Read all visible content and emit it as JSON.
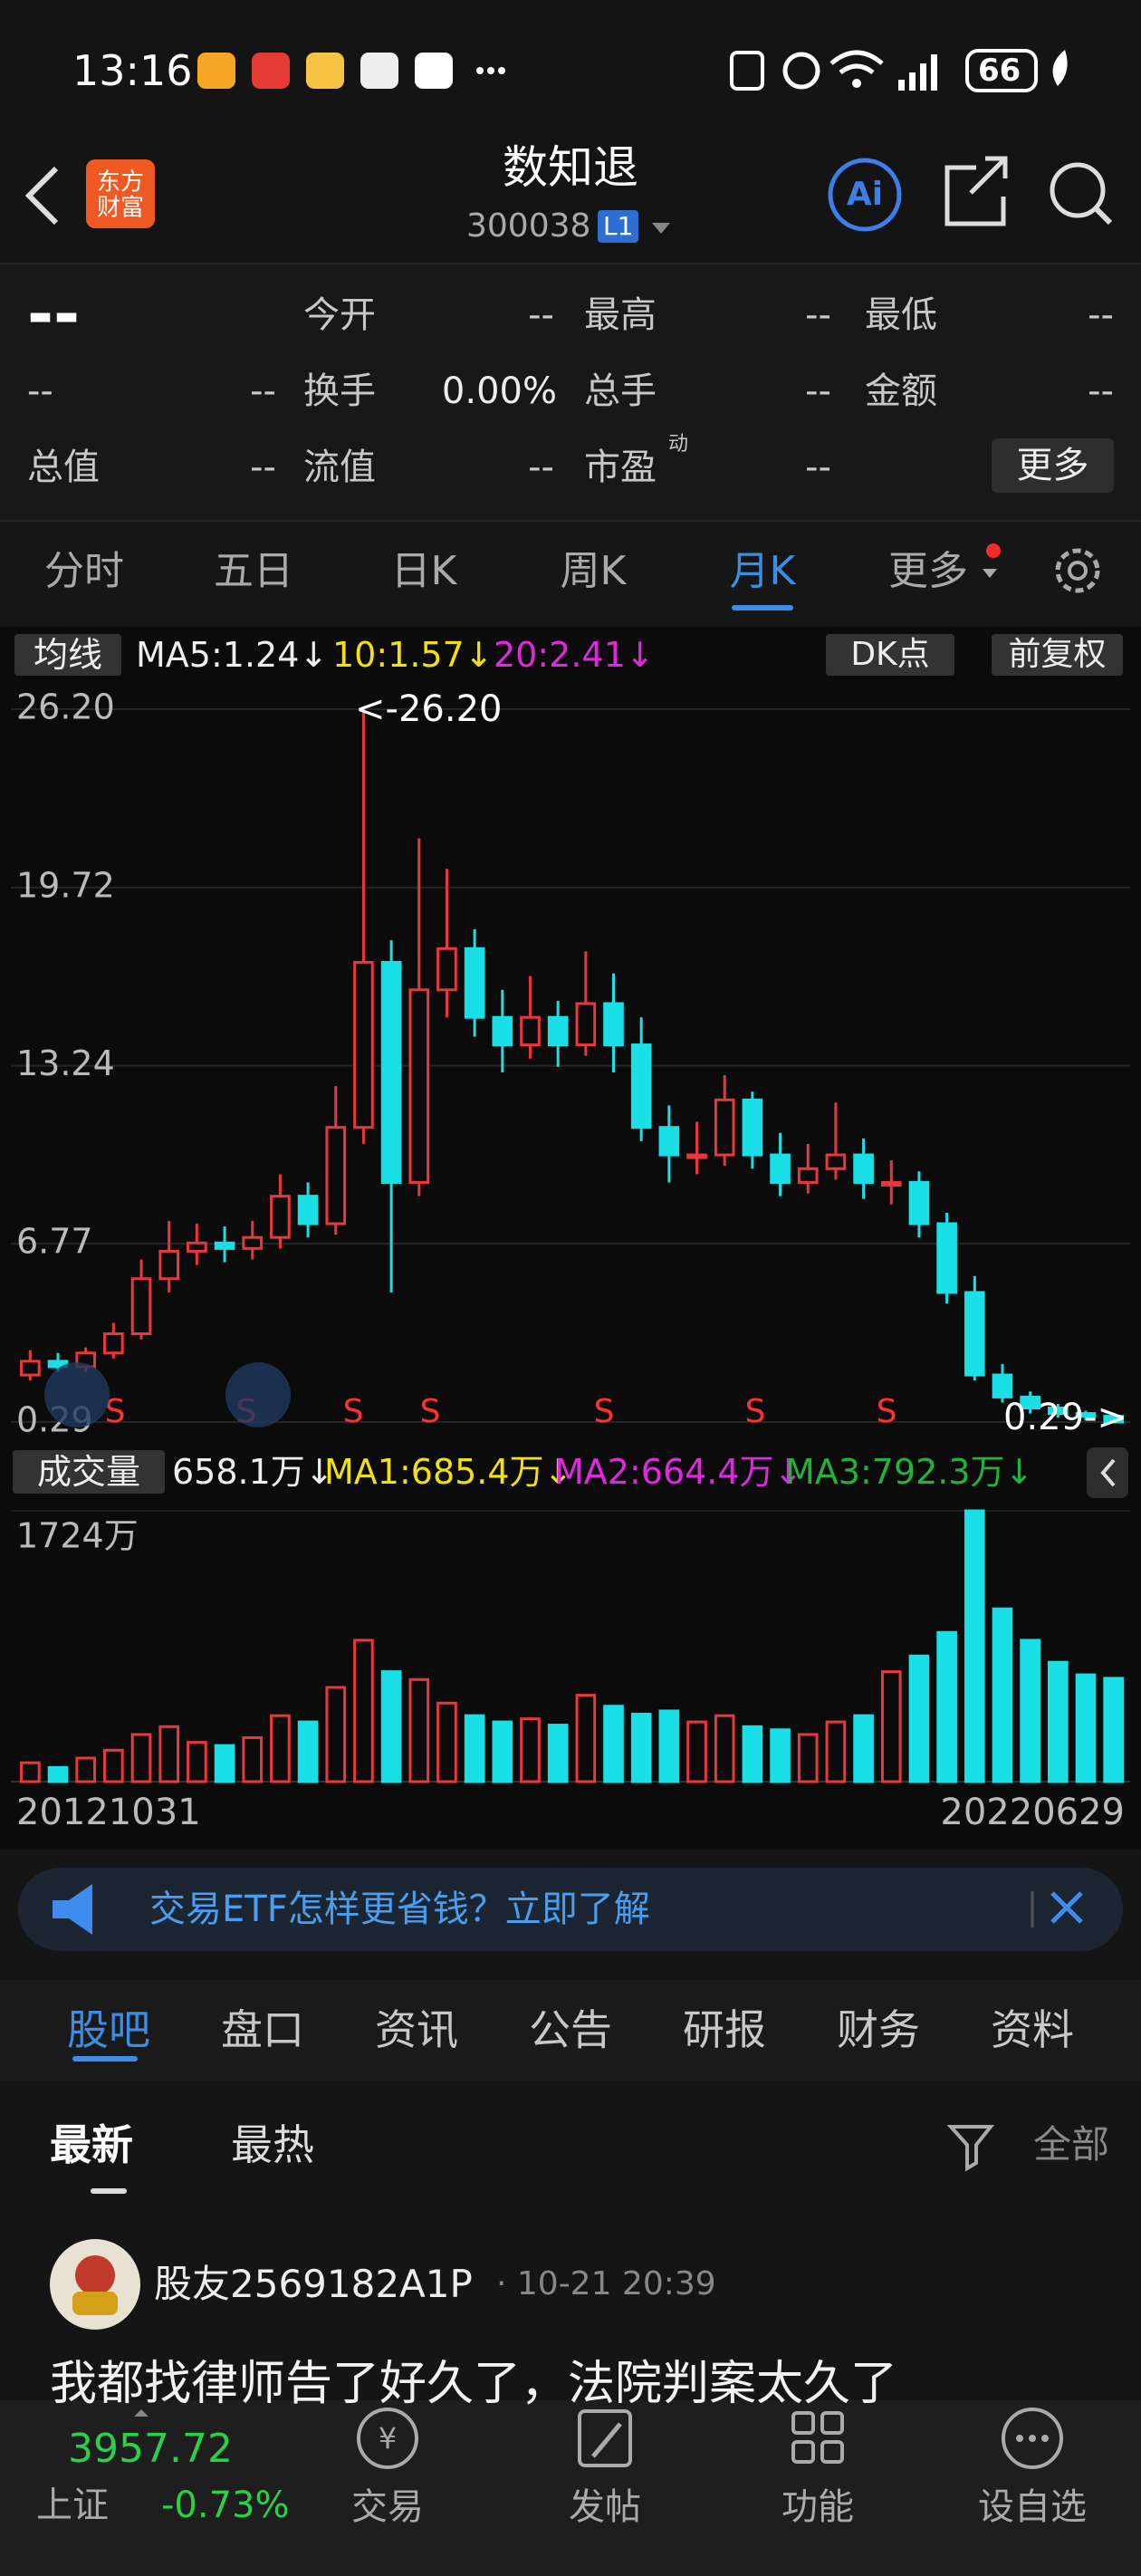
{
  "status_bar": {
    "time": "13:16",
    "battery": "66"
  },
  "header": {
    "title": "数知退",
    "code": "300038",
    "level": "L1"
  },
  "quote": {
    "price": "--",
    "change": "--",
    "change_pct": "--",
    "fields": [
      {
        "label": "今开",
        "value": "--"
      },
      {
        "label": "最高",
        "value": "--"
      },
      {
        "label": "最低",
        "value": "--"
      },
      {
        "label": "换手",
        "value": "0.00%"
      },
      {
        "label": "总手",
        "value": "--"
      },
      {
        "label": "金额",
        "value": "--"
      },
      {
        "label": "总值",
        "value": "--"
      },
      {
        "label": "流值",
        "value": "--"
      },
      {
        "label": "市盈",
        "sup": "动",
        "value": "--"
      }
    ],
    "more": "更多"
  },
  "tabs": [
    "分时",
    "五日",
    "日K",
    "周K",
    "月K",
    "更多"
  ],
  "indicators": {
    "ma_label": "均线",
    "ma5": "MA5:1.24↓",
    "ma10": "10:1.57↓",
    "ma20": "20:2.41↓",
    "dk": "DK点",
    "adjust": "前复权"
  },
  "volume_indicators": {
    "label": "成交量",
    "current": "658.1万↓",
    "ma1": "MA1:685.4万↓",
    "ma2": "MA2:664.4万↓",
    "ma3": "MA3:792.3万↓"
  },
  "chart_data": [
    {
      "type": "candlestick",
      "ylim": [
        0.29,
        26.2
      ],
      "yticks": [
        {
          "value": 26.2,
          "label": "26.20"
        },
        19.72,
        13.24,
        6.77,
        0.29
      ],
      "grid": true,
      "up_color": "#e8383d",
      "down_color": "#19e0e6",
      "open": [
        2.0,
        2.5,
        2.3,
        2.8,
        3.5,
        5.5,
        6.5,
        6.8,
        6.6,
        7.0,
        8.5,
        7.5,
        11,
        17,
        9,
        16,
        17.5,
        15,
        14,
        15,
        14,
        15.5,
        14,
        11,
        10,
        10,
        12,
        10,
        9,
        9.5,
        10,
        9,
        9,
        7.5,
        5,
        2,
        1.2,
        0.8,
        0.6,
        0.5
      ],
      "high": [
        2.9,
        2.8,
        3.0,
        3.9,
        6.2,
        7.6,
        7.5,
        7.4,
        7.6,
        9.3,
        9.0,
        12.5,
        26.2,
        17.8,
        21.5,
        20.4,
        18.2,
        16.0,
        16.5,
        15.6,
        17.4,
        16.6,
        15.0,
        11.8,
        11.2,
        12.9,
        12.3,
        10.8,
        10.4,
        11.9,
        10.6,
        9.8,
        9.4,
        7.9,
        5.6,
        2.4,
        1.4,
        0.95,
        0.7,
        0.55
      ],
      "low": [
        1.8,
        2.1,
        2.1,
        2.6,
        3.3,
        5.0,
        6.0,
        6.1,
        6.2,
        6.6,
        7.0,
        7.1,
        10.4,
        5.0,
        8.5,
        15.0,
        14.3,
        13.0,
        13.5,
        13.2,
        13.6,
        13.0,
        10.5,
        9.0,
        9.3,
        9.6,
        9.5,
        8.5,
        8.6,
        9.1,
        8.4,
        8.2,
        7.0,
        4.6,
        1.8,
        1.0,
        0.6,
        0.45,
        0.35,
        0.29
      ],
      "close": [
        2.5,
        2.3,
        2.8,
        3.5,
        5.5,
        6.5,
        6.8,
        6.6,
        7.0,
        8.5,
        7.5,
        11,
        17,
        9,
        16,
        17.5,
        15,
        14,
        15,
        14,
        15.5,
        14,
        11,
        10,
        10,
        12,
        10,
        9,
        9.5,
        10,
        9,
        9,
        7.5,
        5,
        2,
        1.2,
        0.8,
        0.6,
        0.5,
        0.29
      ],
      "annotations": [
        "<-26.20",
        "0.29->"
      ],
      "signals": [
        "S",
        "S",
        "S",
        "S",
        "S",
        "S",
        "S"
      ]
    },
    {
      "type": "bar",
      "ylim": [
        0,
        1724
      ],
      "yticks": [
        {
          "value": 1724,
          "label": "1724万"
        }
      ],
      "categories": [
        "20121031",
        null,
        null,
        null,
        null,
        null,
        null,
        null,
        null,
        null,
        null,
        null,
        null,
        null,
        null,
        null,
        null,
        null,
        null,
        null,
        null,
        null,
        null,
        null,
        null,
        null,
        null,
        null,
        null,
        null,
        null,
        null,
        null,
        null,
        null,
        null,
        null,
        null,
        null,
        "20220629"
      ],
      "values": [
        120,
        90,
        150,
        200,
        300,
        350,
        250,
        230,
        280,
        420,
        380,
        600,
        900,
        700,
        650,
        500,
        420,
        380,
        400,
        360,
        550,
        480,
        430,
        450,
        380,
        420,
        350,
        330,
        300,
        380,
        420,
        700,
        800,
        950,
        1724,
        1100,
        900,
        760,
        680,
        658
      ]
    }
  ],
  "banner": {
    "text": "交易ETF怎样更省钱？立即了解"
  },
  "section_tabs": [
    "股吧",
    "盘口",
    "资讯",
    "公告",
    "研报",
    "财务",
    "资料"
  ],
  "filters": {
    "latest": "最新",
    "hot": "最热",
    "all": "全部"
  },
  "post": {
    "user": "股友2569182A1P",
    "time": "· 10-21 20:39",
    "text": "我都找律师告了好久了，法院判案太久了"
  },
  "bottom_bar": {
    "index_value": "3957.72",
    "index_name": "上证",
    "index_change": "-0.73%",
    "nav": [
      "交易",
      "发帖",
      "功能",
      "设自选"
    ]
  }
}
